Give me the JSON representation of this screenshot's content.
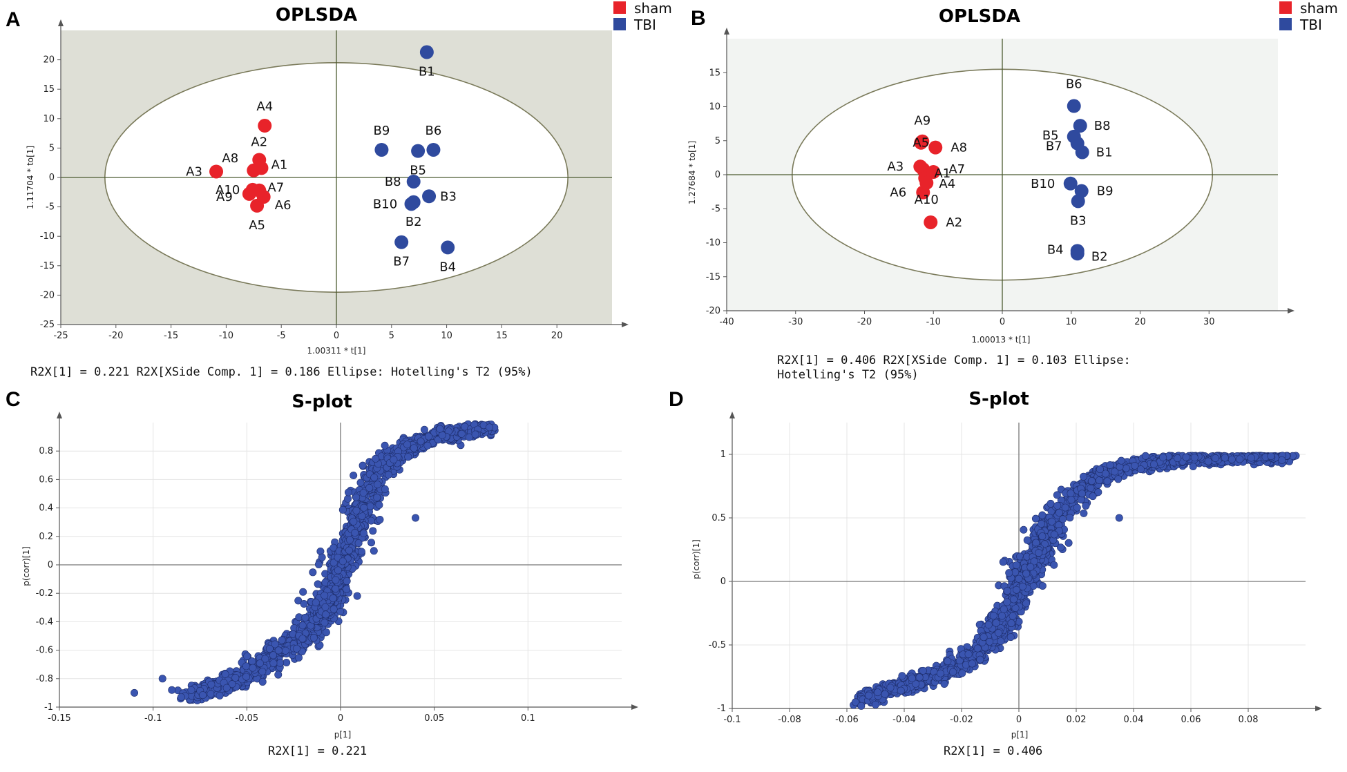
{
  "colors": {
    "sham": "#e8232a",
    "tbi": "#2f4a9e",
    "splot_point": "#3a55b0",
    "plot_bg_a": "#dedfd6",
    "plot_bg_b": "#f2f4f2",
    "axis_line": "#4b5a30"
  },
  "chart_data": [
    {
      "id": "A",
      "panel_label": "A",
      "type": "scatter",
      "title": "OPLSDA",
      "xlabel": "1.00311 * t[1]",
      "ylabel": "1.11704 * to[1]",
      "xlim": [
        -25,
        25
      ],
      "ylim": [
        -25,
        25
      ],
      "xticks": [
        -25,
        -20,
        -15,
        -10,
        -5,
        0,
        5,
        10,
        15,
        20
      ],
      "yticks": [
        -25,
        -20,
        -15,
        -10,
        -5,
        0,
        5,
        10,
        15,
        20
      ],
      "ellipse": {
        "cx": 0,
        "cy": 0,
        "rx": 21,
        "ry": 19.5
      },
      "legend": {
        "position": "top-right",
        "items": [
          {
            "name": "sham",
            "group": "sham"
          },
          {
            "name": "TBI",
            "group": "tbi"
          }
        ]
      },
      "footer": "R2X[1] = 0.221   R2X[XSide Comp. 1] = 0.186   Ellipse: Hotelling's T2 (95%)",
      "series": [
        {
          "name": "sham",
          "group": "sham",
          "points": [
            {
              "label": "A1",
              "x": -6.8,
              "y": 1.6
            },
            {
              "label": "A2",
              "x": -7,
              "y": 3
            },
            {
              "label": "A3",
              "x": -10.9,
              "y": 1
            },
            {
              "label": "A4",
              "x": -6.5,
              "y": 8.8
            },
            {
              "label": "A5",
              "x": -7.2,
              "y": -4.8
            },
            {
              "label": "A6",
              "x": -6.6,
              "y": -3.3
            },
            {
              "label": "A7",
              "x": -7,
              "y": -2.2
            },
            {
              "label": "A8",
              "x": -7.5,
              "y": 1.2
            },
            {
              "label": "A9",
              "x": -7.9,
              "y": -2.8
            },
            {
              "label": "A10",
              "x": -7.6,
              "y": -2.1
            }
          ]
        },
        {
          "name": "TBI",
          "group": "tbi",
          "points": [
            {
              "label": "B1",
              "x": 8.2,
              "y": 21.3
            },
            {
              "label": "B2",
              "x": 7,
              "y": -4.2
            },
            {
              "label": "B3",
              "x": 8.4,
              "y": -3.2
            },
            {
              "label": "B4",
              "x": 10.1,
              "y": -11.9
            },
            {
              "label": "B5",
              "x": 7.4,
              "y": 4.5
            },
            {
              "label": "B6",
              "x": 8.8,
              "y": 4.7
            },
            {
              "label": "B7",
              "x": 5.9,
              "y": -11
            },
            {
              "label": "B8",
              "x": 7,
              "y": -0.7
            },
            {
              "label": "B9",
              "x": 4.1,
              "y": 4.7
            },
            {
              "label": "B10",
              "x": 6.8,
              "y": -4.5
            }
          ]
        }
      ]
    },
    {
      "id": "B",
      "panel_label": "B",
      "type": "scatter",
      "title": "OPLSDA",
      "xlabel": "1.00013 * t[1]",
      "ylabel": "1.27684 * to[1]",
      "xlim": [
        -40,
        40
      ],
      "ylim": [
        -20,
        20
      ],
      "xticks": [
        -40,
        -30,
        -20,
        -10,
        0,
        10,
        20,
        30
      ],
      "yticks": [
        -20,
        -15,
        -10,
        -5,
        0,
        5,
        10,
        15
      ],
      "ellipse": {
        "cx": 0,
        "cy": 0,
        "rx": 30.5,
        "ry": 15.5
      },
      "legend": {
        "position": "top-right",
        "items": [
          {
            "name": "sham",
            "group": "sham"
          },
          {
            "name": "TBI",
            "group": "tbi"
          }
        ]
      },
      "footer": "R2X[1] = 0.406   R2X[XSide Comp. 1] = 0.103   Ellipse:",
      "footer2": "Hotelling's T2 (95%)",
      "series": [
        {
          "name": "sham",
          "group": "sham",
          "points": [
            {
              "label": "A1",
              "x": -11.5,
              "y": 0.8
            },
            {
              "label": "A2",
              "x": -10.4,
              "y": -7
            },
            {
              "label": "A3",
              "x": -11.9,
              "y": 1.2
            },
            {
              "label": "A4",
              "x": -11.2,
              "y": -0.5
            },
            {
              "label": "A5",
              "x": -11.8,
              "y": 4.7
            },
            {
              "label": "A6",
              "x": -11.5,
              "y": -2.6
            },
            {
              "label": "A7",
              "x": -10,
              "y": 0.4
            },
            {
              "label": "A8",
              "x": -9.7,
              "y": 4
            },
            {
              "label": "A9",
              "x": -11.6,
              "y": 4.9
            },
            {
              "label": "A10",
              "x": -11,
              "y": -1.2
            }
          ]
        },
        {
          "name": "TBI",
          "group": "tbi",
          "points": [
            {
              "label": "B1",
              "x": 11.6,
              "y": 3.3
            },
            {
              "label": "B2",
              "x": 10.9,
              "y": -11.6
            },
            {
              "label": "B3",
              "x": 11,
              "y": -3.9
            },
            {
              "label": "B4",
              "x": 10.9,
              "y": -11.2
            },
            {
              "label": "B5",
              "x": 10.4,
              "y": 5.6
            },
            {
              "label": "B6",
              "x": 10.4,
              "y": 10.1
            },
            {
              "label": "B7",
              "x": 10.9,
              "y": 4.6
            },
            {
              "label": "B8",
              "x": 11.3,
              "y": 7.2
            },
            {
              "label": "B9",
              "x": 11.5,
              "y": -2.4
            },
            {
              "label": "B10",
              "x": 9.9,
              "y": -1.3
            }
          ]
        }
      ]
    },
    {
      "id": "C",
      "panel_label": "C",
      "type": "scatter",
      "title": "S-plot",
      "xlabel": "p[1]",
      "ylabel": "p(corr)[1]",
      "xlim": [
        -0.15,
        0.15
      ],
      "ylim": [
        -1,
        1
      ],
      "xticks": [
        -0.15,
        -0.1,
        -0.05,
        0,
        0.05,
        0.1
      ],
      "yticks": [
        -1,
        -0.8,
        -0.6,
        -0.4,
        -0.2,
        0,
        0.2,
        0.4,
        0.6,
        0.8
      ],
      "footer": "R2X[1] = 0.221",
      "curve": {
        "knots_x": [
          -0.078,
          -0.05,
          -0.02,
          -0.005,
          0,
          0.005,
          0.012,
          0.02,
          0.035,
          0.05,
          0.07,
          0.08
        ],
        "knots_y": [
          -0.92,
          -0.78,
          -0.5,
          -0.22,
          -0.02,
          0.15,
          0.45,
          0.68,
          0.82,
          0.9,
          0.95,
          0.96
        ],
        "count": 1500,
        "spread_x": 0.006,
        "spread_y": 0.05,
        "outliers": [
          [
            -0.11,
            -0.9
          ],
          [
            -0.095,
            -0.8
          ],
          [
            -0.09,
            -0.88
          ],
          [
            -0.085,
            -0.93
          ],
          [
            0.04,
            0.33
          ]
        ]
      }
    },
    {
      "id": "D",
      "panel_label": "D",
      "type": "scatter",
      "title": "S-plot",
      "xlabel": "p[1]",
      "ylabel": "p(corr)[1]",
      "xlim": [
        -0.1,
        0.1
      ],
      "ylim": [
        -1,
        1.25
      ],
      "xticks": [
        -0.1,
        -0.08,
        -0.06,
        -0.04,
        -0.02,
        0,
        0.02,
        0.04,
        0.06,
        0.08
      ],
      "yticks": [
        -1,
        -0.5,
        0,
        0.5,
        1
      ],
      "footer": "R2X[1] = 0.406",
      "curve": {
        "knots_x": [
          -0.055,
          -0.03,
          -0.015,
          -0.005,
          0,
          0.005,
          0.012,
          0.02,
          0.03,
          0.045,
          0.06,
          0.08,
          0.093
        ],
        "knots_y": [
          -0.93,
          -0.75,
          -0.58,
          -0.3,
          -0.02,
          0.15,
          0.45,
          0.68,
          0.86,
          0.93,
          0.96,
          0.98,
          0.98
        ],
        "count": 1500,
        "spread_x": 0.004,
        "spread_y": 0.05,
        "outliers": [
          [
            -0.057,
            -0.95
          ],
          [
            -0.055,
            -0.98
          ],
          [
            -0.05,
            -0.97
          ],
          [
            0.035,
            0.5
          ]
        ]
      }
    }
  ]
}
